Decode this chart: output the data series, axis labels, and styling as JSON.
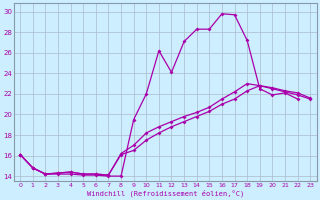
{
  "xlabel": "Windchill (Refroidissement éolien,°C)",
  "bg_color": "#cceeff",
  "line_color": "#aa00aa",
  "grid_color": "#aabbcc",
  "xlim": [
    -0.5,
    23.5
  ],
  "ylim": [
    13.5,
    30.8
  ],
  "xticks": [
    0,
    1,
    2,
    3,
    4,
    5,
    6,
    7,
    8,
    9,
    10,
    11,
    12,
    13,
    14,
    15,
    16,
    17,
    18,
    19,
    20,
    21,
    22,
    23
  ],
  "yticks": [
    14,
    16,
    18,
    20,
    22,
    24,
    26,
    28,
    30
  ],
  "line1_x": [
    0,
    1,
    2,
    3,
    4,
    5,
    6,
    7,
    8,
    9,
    10,
    11,
    12,
    13,
    14,
    15,
    16,
    17,
    18,
    19,
    20,
    21,
    22
  ],
  "line1_y": [
    16.1,
    14.8,
    14.2,
    14.2,
    14.2,
    14.1,
    14.1,
    14.0,
    14.0,
    19.5,
    22.0,
    26.2,
    24.1,
    27.1,
    28.3,
    28.3,
    29.8,
    29.7,
    27.2,
    22.5,
    21.9,
    22.1,
    21.5
  ],
  "line2_x": [
    0,
    1,
    2,
    3,
    4,
    5,
    6,
    7,
    8,
    9,
    10,
    11,
    12,
    13,
    14,
    15,
    16,
    17,
    18,
    19,
    20,
    21,
    22,
    23
  ],
  "line2_y": [
    16.1,
    14.8,
    14.2,
    14.3,
    14.4,
    14.2,
    14.2,
    14.1,
    16.2,
    17.0,
    18.2,
    18.8,
    19.3,
    19.8,
    20.2,
    20.7,
    21.5,
    22.2,
    23.0,
    22.8,
    22.6,
    22.3,
    22.1,
    21.6
  ],
  "line3_x": [
    0,
    1,
    2,
    3,
    4,
    5,
    6,
    7,
    8,
    9,
    10,
    11,
    12,
    13,
    14,
    15,
    16,
    17,
    18,
    19,
    20,
    21,
    22,
    23
  ],
  "line3_y": [
    16.1,
    14.8,
    14.2,
    14.3,
    14.4,
    14.2,
    14.2,
    14.1,
    16.1,
    16.5,
    17.5,
    18.2,
    18.8,
    19.3,
    19.8,
    20.3,
    21.0,
    21.5,
    22.3,
    22.8,
    22.5,
    22.2,
    21.9,
    21.5
  ]
}
